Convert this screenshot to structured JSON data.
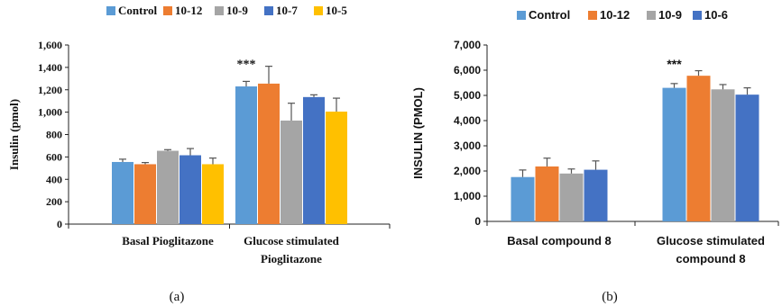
{
  "chart_data": [
    {
      "type": "bar",
      "panel_label": "(a)",
      "categories": [
        [
          "Basal Pioglitazone"
        ],
        [
          "Glucose stimulated",
          "Pioglitazone"
        ]
      ],
      "ylabel": "Insulin (pmol)",
      "ylim": [
        0,
        1600
      ],
      "yticks": [
        "0",
        "200",
        "400",
        "600",
        "800",
        "1,000",
        "1,200",
        "1,400",
        "1,600"
      ],
      "series": [
        {
          "name": "Control",
          "color": "#5B9BD5",
          "values": [
            555,
            1230
          ],
          "errors": [
            25,
            45
          ]
        },
        {
          "name": "10-12",
          "color": "#ED7D31",
          "values": [
            535,
            1255
          ],
          "errors": [
            15,
            155
          ]
        },
        {
          "name": "10-9",
          "color": "#A5A5A5",
          "values": [
            655,
            925
          ],
          "errors": [
            10,
            155
          ]
        },
        {
          "name": "10-7",
          "color": "#4472C4",
          "values": [
            615,
            1135
          ],
          "errors": [
            60,
            20
          ]
        },
        {
          "name": "10-5",
          "color": "#FFC000",
          "values": [
            535,
            1005
          ],
          "errors": [
            55,
            120
          ]
        }
      ],
      "annotations": [
        {
          "text": "***",
          "category_index": 1
        }
      ],
      "grid": false,
      "legend": "top"
    },
    {
      "type": "bar",
      "panel_label": "(b)",
      "categories": [
        [
          "Basal compound 8"
        ],
        [
          "Glucose stimulated",
          "compound 8"
        ]
      ],
      "ylabel": "INSULIN (PMOL)",
      "ylim": [
        0,
        7000
      ],
      "yticks": [
        "0",
        "1,000",
        "2,000",
        "3,000",
        "4,000",
        "5,000",
        "6,000",
        "7,000"
      ],
      "series": [
        {
          "name": "Control",
          "color": "#5B9BD5",
          "values": [
            1760,
            5300
          ],
          "errors": [
            280,
            170
          ]
        },
        {
          "name": "10-12",
          "color": "#ED7D31",
          "values": [
            2180,
            5780
          ],
          "errors": [
            330,
            200
          ]
        },
        {
          "name": "10-9",
          "color": "#A5A5A5",
          "values": [
            1900,
            5240
          ],
          "errors": [
            180,
            190
          ]
        },
        {
          "name": "10-6",
          "color": "#4472C4",
          "values": [
            2050,
            5030
          ],
          "errors": [
            350,
            270
          ]
        }
      ],
      "annotations": [
        {
          "text": "***",
          "category_index": 1
        }
      ],
      "grid": false,
      "legend": "top"
    }
  ]
}
